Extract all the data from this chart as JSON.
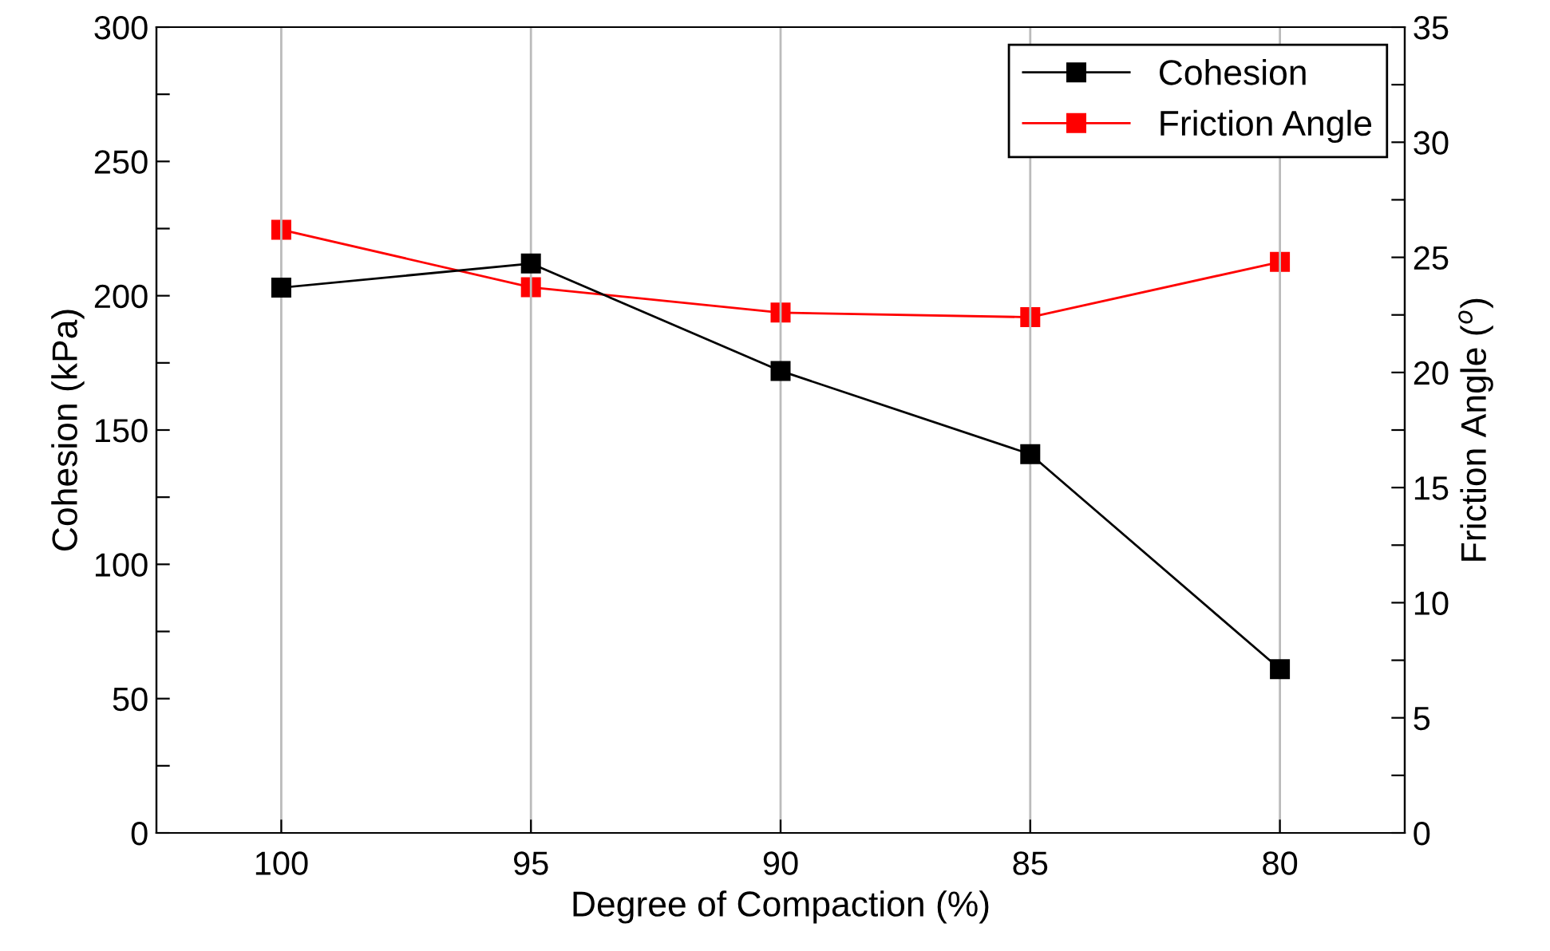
{
  "chart_data": {
    "type": "line",
    "xlabel": "Degree of Compaction (%)",
    "ylabel": "Cohesion (kPa)",
    "y2label": "Friction Angle ($^{o}$)",
    "x": [
      100,
      95,
      90,
      85,
      80
    ],
    "xlim": [
      102.5,
      77.5
    ],
    "xticks": [
      100,
      95,
      90,
      85,
      80
    ],
    "ylim": [
      0,
      300
    ],
    "yticks": [
      0,
      {
        "value": 25,
        "label": null
      },
      50,
      {
        "value": 75,
        "label": null
      },
      100,
      {
        "value": 125,
        "label": null
      },
      150,
      {
        "value": 175,
        "label": null
      },
      200,
      {
        "value": 225,
        "label": null
      },
      250,
      {
        "value": 275,
        "label": null
      },
      300
    ],
    "y2lim": [
      0,
      35
    ],
    "y2ticks": [
      0,
      {
        "value": 2.5,
        "label": null
      },
      5,
      {
        "value": 7.5,
        "label": null
      },
      10,
      {
        "value": 12.5,
        "label": null
      },
      15,
      {
        "value": 17.5,
        "label": null
      },
      20,
      {
        "value": 22.5,
        "label": null
      },
      25,
      {
        "value": 27.5,
        "label": null
      },
      30,
      {
        "value": 32.5,
        "label": null
      },
      35
    ],
    "series": [
      {
        "name": "Cohesion",
        "color": "#000000",
        "values": [
          203,
          212,
          172,
          141,
          61
        ]
      },
      {
        "name": "Friction Angle",
        "color": "#ff0000",
        "axis": "y2",
        "values": [
          26.2,
          23.7,
          22.6,
          22.4,
          24.8
        ]
      }
    ],
    "marker": "square",
    "line_style": "solid",
    "grid": "x",
    "legend": "top right"
  }
}
